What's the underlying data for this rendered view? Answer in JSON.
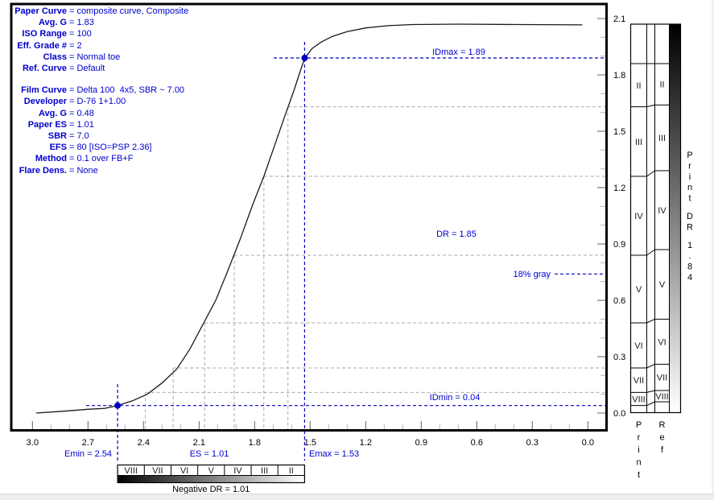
{
  "colors": {
    "text_blue": "#0000cc",
    "annotation_blue": "#0000bf",
    "curve_black": "#1a1a1a",
    "grid_gray": "#a8a8a8",
    "tick_major": "#606060",
    "tick_minor": "#b4b4b4",
    "axis_black": "#000000",
    "zone_text": "#1a1a1a"
  },
  "info_panel": {
    "blocks": [
      {
        "rows": [
          {
            "label": "Paper Curve",
            "value": "composite curve, Composite"
          },
          {
            "label": "Avg. G",
            "value": "1.83"
          },
          {
            "label": "ISO Range",
            "value": "100"
          },
          {
            "label": "Eff. Grade #",
            "value": "2"
          },
          {
            "label": "Class",
            "value": "Normal toe"
          },
          {
            "label": "Ref. Curve",
            "value": "Default"
          }
        ]
      },
      {
        "rows": [
          {
            "label": "Film Curve",
            "value": "Delta 100  4x5, SBR ~ 7.00"
          },
          {
            "label": "Developer",
            "value": "D-76 1+1.00"
          },
          {
            "label": "Avg. G",
            "value": "0.48"
          },
          {
            "label": "Paper ES",
            "value": "1.01"
          },
          {
            "label": "SBR",
            "value": "7.0"
          },
          {
            "label": "EFS",
            "value": "80 [ISO=PSP 2.36]"
          },
          {
            "label": "Method",
            "value": "0.1 over FB+F"
          },
          {
            "label": "Flare Dens.",
            "value": "None"
          }
        ]
      }
    ]
  },
  "chart_data": {
    "type": "line",
    "title": "",
    "x_axis": {
      "min": 0.0,
      "max": 3.0,
      "reversed": true,
      "major_step": 0.3,
      "minor_step": 0.1,
      "tick_labels": [
        "3.0",
        "2.7",
        "2.4",
        "2.1",
        "1.8",
        "1.5",
        "1.2",
        "0.9",
        "0.6",
        "0.3",
        "0.0"
      ]
    },
    "y_axis": {
      "min": 0.0,
      "max": 2.1,
      "side": "right",
      "major_step": 0.3,
      "minor_step": 0.1,
      "tick_labels": [
        "0.0",
        "0.3",
        "0.6",
        "0.9",
        "1.2",
        "1.5",
        "1.8",
        "2.1"
      ]
    },
    "series": [
      {
        "name": "composite-paper-curve",
        "points": [
          [
            2.98,
            0.0
          ],
          [
            2.83,
            0.01
          ],
          [
            2.7,
            0.02
          ],
          [
            2.61,
            0.025
          ],
          [
            2.54,
            0.04
          ],
          [
            2.46,
            0.065
          ],
          [
            2.38,
            0.1
          ],
          [
            2.3,
            0.16
          ],
          [
            2.22,
            0.235
          ],
          [
            2.15,
            0.34
          ],
          [
            2.08,
            0.47
          ],
          [
            2.01,
            0.6
          ],
          [
            1.95,
            0.745
          ],
          [
            1.88,
            0.92
          ],
          [
            1.81,
            1.11
          ],
          [
            1.75,
            1.26
          ],
          [
            1.69,
            1.43
          ],
          [
            1.63,
            1.6
          ],
          [
            1.59,
            1.71
          ],
          [
            1.55,
            1.83
          ],
          [
            1.53,
            1.886
          ],
          [
            1.49,
            1.94
          ],
          [
            1.44,
            1.975
          ],
          [
            1.38,
            2.005
          ],
          [
            1.3,
            2.03
          ],
          [
            1.2,
            2.05
          ],
          [
            1.08,
            2.062
          ],
          [
            0.95,
            2.068
          ],
          [
            0.7,
            2.07
          ],
          [
            0.35,
            2.068
          ],
          [
            0.03,
            2.066
          ]
        ]
      }
    ],
    "marker_points": [
      {
        "name": "emin-idmin-point",
        "exposure": 2.54,
        "density": 0.04
      },
      {
        "name": "emax-idmax-point",
        "exposure": 1.53,
        "density": 1.89
      }
    ],
    "staircase_projections": [
      {
        "exposure": 1.62,
        "density": 1.63
      },
      {
        "exposure": 1.75,
        "density": 1.26
      },
      {
        "exposure": 1.91,
        "density": 0.84
      },
      {
        "exposure": 2.07,
        "density": 0.48
      },
      {
        "exposure": 2.24,
        "density": 0.24
      },
      {
        "exposure": 2.39,
        "density": 0.11
      }
    ],
    "annotations": {
      "idmax": {
        "text": "IDmax = 1.89",
        "density": 1.89
      },
      "idmin": {
        "text": "IDmin = 0.04",
        "density": 0.04
      },
      "dr": {
        "text": "DR = 1.85",
        "value": 1.85
      },
      "gray18": {
        "text": "18% gray",
        "density": 0.74
      },
      "emin": {
        "text": "Emin = 2.54",
        "exposure": 2.54
      },
      "es": {
        "text": "ES = 1.01",
        "value": 1.01
      },
      "emax": {
        "text": "Emax = 1.53",
        "exposure": 1.53
      }
    },
    "print_zone_chart": {
      "top_density": 2.07,
      "bottom_density": 0.0,
      "zone_labels": [
        "II",
        "III",
        "IV",
        "V",
        "VI",
        "VII",
        "VIII"
      ],
      "print_boundaries": [
        1.86,
        1.63,
        1.26,
        0.84,
        0.48,
        0.24,
        0.11,
        0.04
      ],
      "ref_boundaries": [
        1.86,
        1.64,
        1.29,
        0.87,
        0.5,
        0.26,
        0.12,
        0.06
      ],
      "footer_labels": [
        "Print",
        "Ref"
      ],
      "side_label": {
        "line1": "Print",
        "line2": "DR",
        "line3": "1.84"
      }
    },
    "negative_strip": {
      "zone_labels": [
        "VIII",
        "VII",
        "VI",
        "V",
        "IV",
        "III",
        "II"
      ],
      "from_exposure": 2.54,
      "to_exposure": 1.53,
      "caption": "Negative DR = 1.01"
    }
  }
}
